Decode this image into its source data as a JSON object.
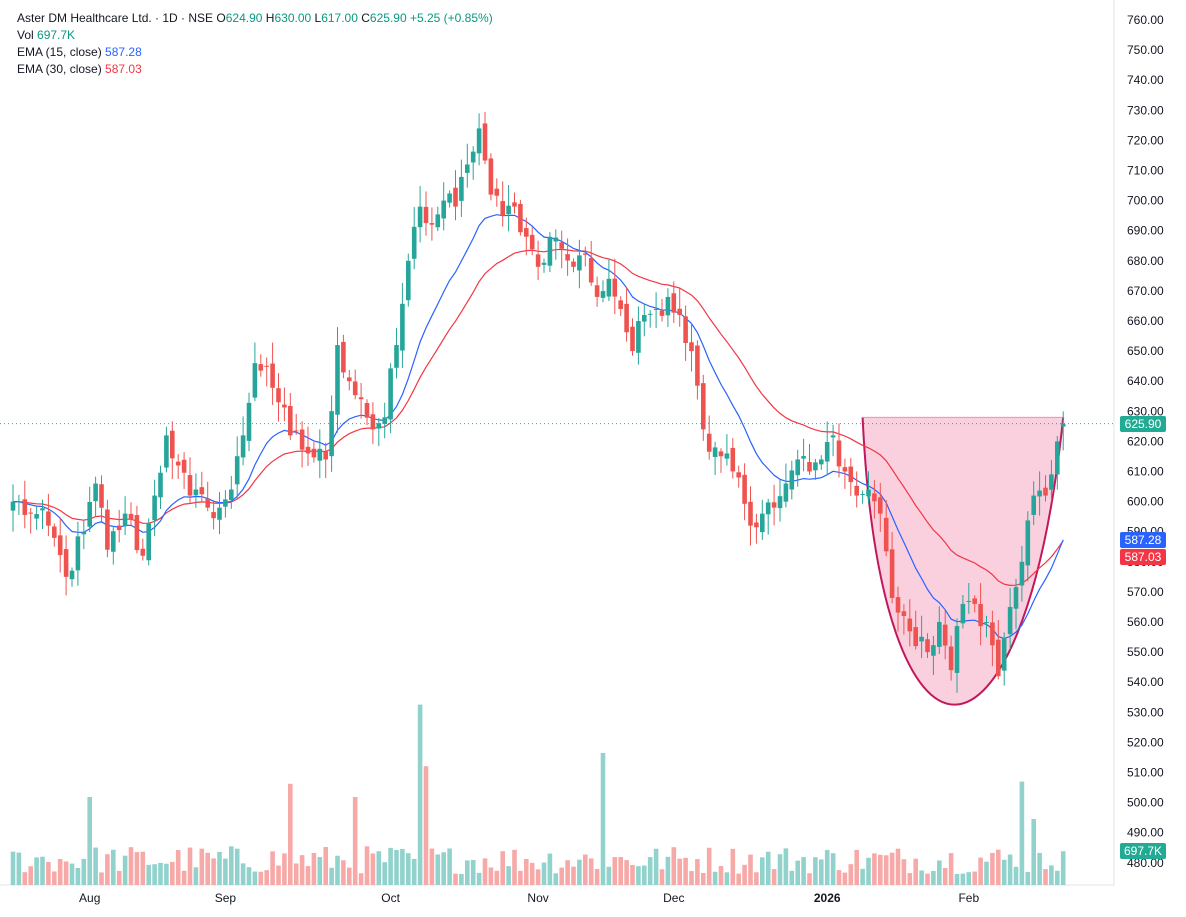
{
  "header": {
    "symbol": "Aster DM Healthcare Ltd. · 1D · NSE",
    "o_label": "O",
    "o_value": "624.90",
    "h_label": "H",
    "h_value": "630.00",
    "l_label": "L",
    "l_value": "617.00",
    "c_label": "C",
    "c_value": "625.90",
    "change": "+5.25 (+0.85%)"
  },
  "legend": {
    "vol_label": "Vol",
    "vol_value": "697.7K",
    "ema15_label": "EMA (15, close)",
    "ema15_value": "587.28",
    "ema30_label": "EMA (30, close)",
    "ema30_value": "587.03"
  },
  "price_tags": {
    "last": "625.90",
    "ema15": "587.28",
    "ema30": "587.03",
    "volume": "697.7K"
  },
  "colors": {
    "up": "#26a69a",
    "down": "#ef5350",
    "ema15": "#2962ff",
    "ema30": "#f23645",
    "pattern_fill": "#f8bbd0",
    "pattern_stroke": "#c2185b"
  },
  "chart_data": {
    "type": "candlestick",
    "title": "Aster DM Healthcare Ltd. · 1D · NSE",
    "ylim": [
      478,
      765
    ],
    "y_ticks": [
      "760.00",
      "750.00",
      "740.00",
      "730.00",
      "720.00",
      "710.00",
      "700.00",
      "690.00",
      "680.00",
      "670.00",
      "660.00",
      "650.00",
      "640.00",
      "630.00",
      "620.00",
      "610.00",
      "600.00",
      "590.00",
      "580.00",
      "570.00",
      "560.00",
      "550.00",
      "540.00",
      "530.00",
      "520.00",
      "510.00",
      "500.00",
      "490.00",
      "480.00"
    ],
    "x_ticks": [
      {
        "label": "Aug",
        "index": 13
      },
      {
        "label": "Sep",
        "index": 36
      },
      {
        "label": "Oct",
        "index": 64
      },
      {
        "label": "Nov",
        "index": 89
      },
      {
        "label": "Dec",
        "index": 112
      },
      {
        "label": "2026",
        "index": 138
      },
      {
        "label": "Feb",
        "index": 162
      }
    ],
    "close_anchors": [
      [
        0,
        600
      ],
      [
        3,
        596
      ],
      [
        6,
        592
      ],
      [
        9,
        575
      ],
      [
        12,
        590
      ],
      [
        14,
        606
      ],
      [
        16,
        584
      ],
      [
        19,
        596
      ],
      [
        22,
        582
      ],
      [
        24,
        602
      ],
      [
        26,
        622
      ],
      [
        28,
        612
      ],
      [
        30,
        602
      ],
      [
        33,
        598
      ],
      [
        35,
        598
      ],
      [
        37,
        604
      ],
      [
        39,
        622
      ],
      [
        41,
        646
      ],
      [
        43,
        645
      ],
      [
        45,
        633
      ],
      [
        47,
        622
      ],
      [
        50,
        616
      ],
      [
        53,
        614
      ],
      [
        55,
        652
      ],
      [
        57,
        640
      ],
      [
        59,
        634
      ],
      [
        61,
        624
      ],
      [
        63,
        628
      ],
      [
        65,
        652
      ],
      [
        67,
        680
      ],
      [
        69,
        698
      ],
      [
        71,
        692
      ],
      [
        73,
        700
      ],
      [
        75,
        698
      ],
      [
        77,
        712
      ],
      [
        79,
        724
      ],
      [
        81,
        702
      ],
      [
        83,
        695
      ],
      [
        85,
        698
      ],
      [
        87,
        688
      ],
      [
        89,
        678
      ],
      [
        91,
        688
      ],
      [
        93,
        684
      ],
      [
        95,
        678
      ],
      [
        97,
        682
      ],
      [
        99,
        668
      ],
      [
        101,
        674
      ],
      [
        103,
        664
      ],
      [
        105,
        650
      ],
      [
        107,
        662
      ],
      [
        109,
        664
      ],
      [
        111,
        668
      ],
      [
        113,
        662
      ],
      [
        115,
        650
      ],
      [
        117,
        624
      ],
      [
        119,
        618
      ],
      [
        121,
        616
      ],
      [
        123,
        608
      ],
      [
        125,
        592
      ],
      [
        127,
        596
      ],
      [
        129,
        598
      ],
      [
        131,
        606
      ],
      [
        133,
        614
      ],
      [
        135,
        610
      ],
      [
        137,
        614
      ],
      [
        139,
        622
      ],
      [
        141,
        610
      ],
      [
        143,
        602
      ],
      [
        145,
        604
      ],
      [
        147,
        596
      ],
      [
        149,
        568
      ],
      [
        151,
        562
      ],
      [
        153,
        552
      ],
      [
        155,
        550
      ],
      [
        157,
        560
      ],
      [
        159,
        544
      ],
      [
        161,
        566
      ],
      [
        163,
        566
      ],
      [
        165,
        560
      ],
      [
        167,
        542
      ],
      [
        169,
        565
      ],
      [
        171,
        580
      ],
      [
        173,
        602
      ],
      [
        175,
        602
      ],
      [
        177,
        620
      ],
      [
        178,
        625.9
      ]
    ],
    "ema15_last": 587.28,
    "ema30_last": 587.03,
    "volume_last": "697.7K",
    "volume_spikes": [
      {
        "index": 13,
        "height": 0.4
      },
      {
        "index": 47,
        "height": 0.46
      },
      {
        "index": 58,
        "height": 0.4
      },
      {
        "index": 69,
        "height": 0.82
      },
      {
        "index": 70,
        "height": 0.54
      },
      {
        "index": 100,
        "height": 0.6
      },
      {
        "index": 171,
        "height": 0.47
      },
      {
        "index": 173,
        "height": 0.3
      }
    ],
    "cup_pattern": {
      "left_price": 628,
      "bottom_price": 514,
      "right_price": 628
    }
  }
}
